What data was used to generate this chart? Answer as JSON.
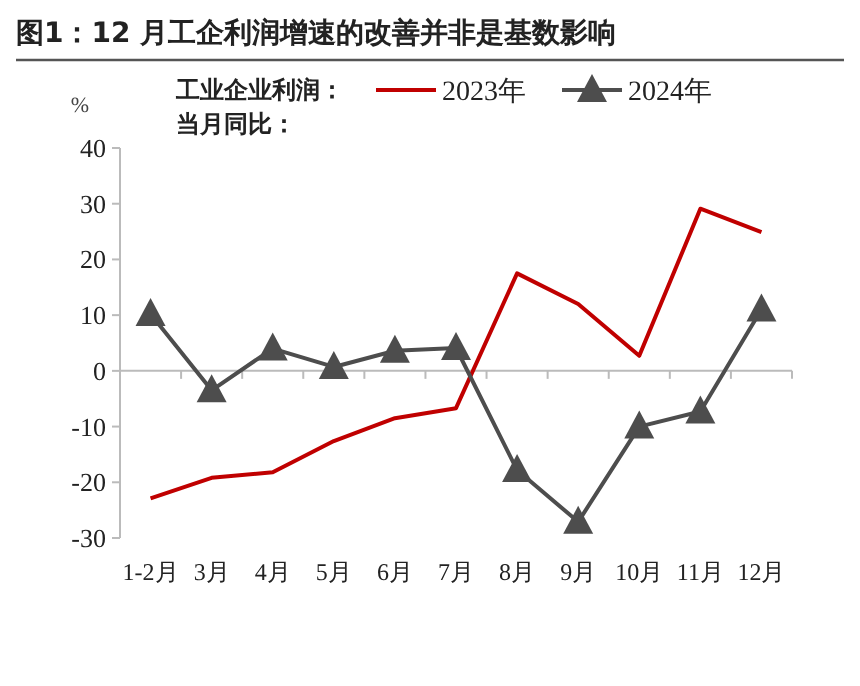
{
  "chart_data": {
    "type": "line",
    "title": "图1：12 月工企利润增速的改善并非是基数影响",
    "ylabel": "%",
    "legend_title": "工业企业利润：当月同比：",
    "categories": [
      "1-2月",
      "3月",
      "4月",
      "5月",
      "6月",
      "7月",
      "8月",
      "9月",
      "10月",
      "11月",
      "12月"
    ],
    "series": [
      {
        "name": "2023年",
        "color": "#c00000",
        "marker": "none",
        "values": [
          -22.9,
          -19.2,
          -18.2,
          -12.6,
          -8.5,
          -6.7,
          17.5,
          12.0,
          2.7,
          29.1,
          24.9
        ]
      },
      {
        "name": "2024年",
        "color": "#4d4d4d",
        "marker": "triangle",
        "values": [
          10.2,
          -3.5,
          4.0,
          0.7,
          3.6,
          4.1,
          -17.8,
          -27.1,
          -10.0,
          -7.3,
          11.0
        ]
      }
    ],
    "ylim": [
      -30,
      40
    ],
    "yticks": [
      -30,
      -20,
      -10,
      0,
      10,
      20,
      30,
      40
    ],
    "legend": "top"
  }
}
